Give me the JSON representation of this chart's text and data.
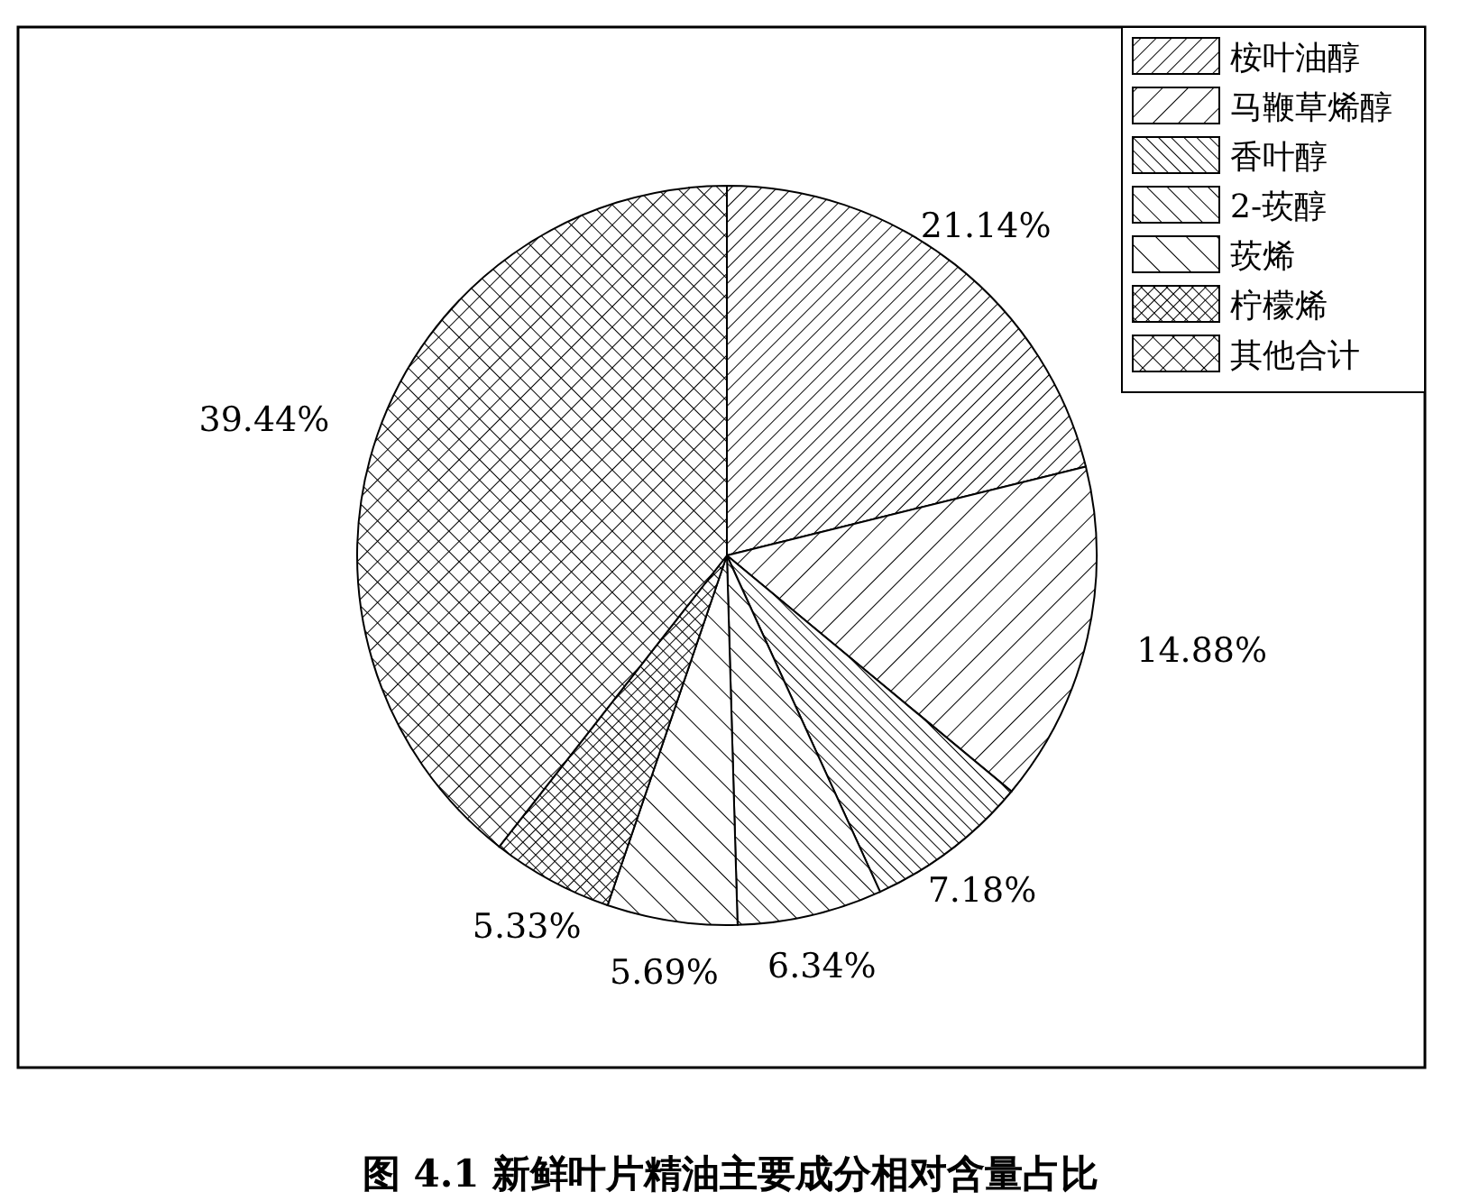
{
  "chart_data": {
    "type": "pie",
    "title": "图 4.1  新鲜叶片精油主要成分相对含量占比",
    "categories": [
      "桉叶油醇",
      "马鞭草烯醇",
      "香叶醇",
      "2-莰醇",
      "莰烯",
      "柠檬烯",
      "其他合计"
    ],
    "values": [
      21.14,
      14.88,
      7.18,
      6.34,
      5.69,
      5.33,
      39.44
    ],
    "value_labels": [
      "21.14%",
      "14.88%",
      "7.18%",
      "6.34%",
      "5.69%",
      "5.33%",
      "39.44%"
    ],
    "legend": "top right"
  }
}
